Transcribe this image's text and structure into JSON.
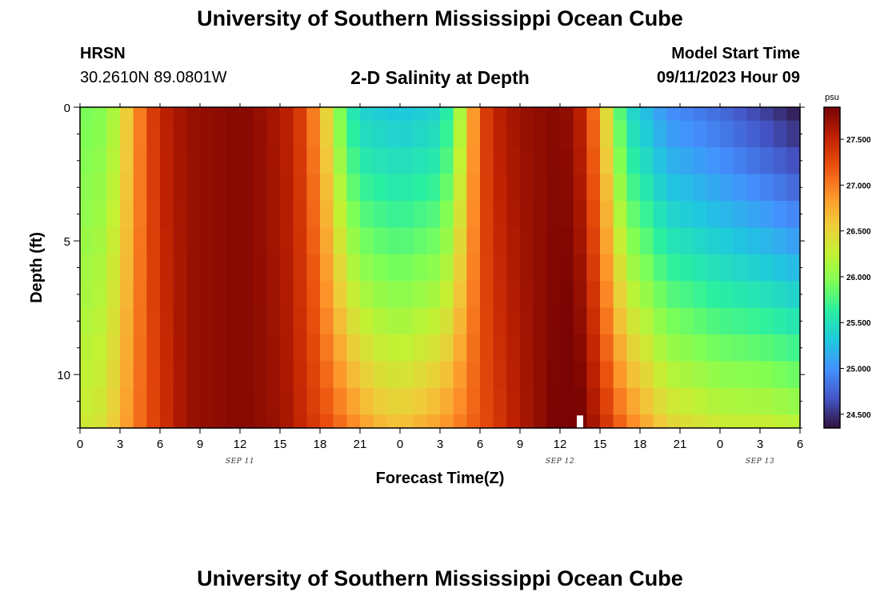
{
  "header": {
    "title_top": "University of Southern Mississippi Ocean Cube",
    "title_bottom": "University of Southern Mississippi Ocean Cube",
    "station": "HRSN",
    "coordinates": "30.2610N  89.0801W",
    "subtitle": "2-D Salinity at Depth",
    "model_start_label": "Model Start Time",
    "model_start_value": "09/11/2023 Hour 09"
  },
  "chart_data": {
    "type": "heatmap",
    "title": "2-D Salinity at Depth",
    "xlabel": "Forecast Time(Z)",
    "ylabel": "Depth (ft)",
    "x_hours_range": [
      0,
      54
    ],
    "x_tick_hours": [
      0,
      3,
      6,
      9,
      12,
      15,
      18,
      21,
      24,
      27,
      30,
      33,
      36,
      39,
      42,
      45,
      48,
      51,
      54
    ],
    "x_tick_labels": [
      "0",
      "3",
      "6",
      "9",
      "12",
      "15",
      "18",
      "21",
      "0",
      "3",
      "6",
      "9",
      "12",
      "15",
      "18",
      "21",
      "0",
      "3",
      "6"
    ],
    "date_labels": [
      {
        "hour": 12,
        "text": "SEP 11"
      },
      {
        "hour": 36,
        "text": "SEP 12"
      },
      {
        "hour": 51,
        "text": "SEP 13"
      }
    ],
    "y_range_ft": [
      0,
      12
    ],
    "y_tick_values": [
      0,
      5,
      10
    ],
    "y_tick_labels": [
      "0",
      "5",
      "10"
    ],
    "depth_layers_ft": [
      0,
      1,
      2,
      3,
      4,
      5,
      6,
      7,
      8,
      9,
      10,
      11,
      12
    ],
    "salinity_surface_psu": [
      [
        0,
        25.9
      ],
      [
        2,
        26.0
      ],
      [
        3,
        26.3
      ],
      [
        4,
        26.8
      ],
      [
        5,
        27.2
      ],
      [
        6,
        27.5
      ],
      [
        8,
        27.7
      ],
      [
        12,
        27.8
      ],
      [
        14,
        27.7
      ],
      [
        16,
        27.5
      ],
      [
        17,
        27.2
      ],
      [
        18,
        26.8
      ],
      [
        19,
        26.2
      ],
      [
        20,
        25.7
      ],
      [
        21,
        25.4
      ],
      [
        24,
        25.3
      ],
      [
        27,
        25.4
      ],
      [
        28,
        25.8
      ],
      [
        29,
        26.5
      ],
      [
        30,
        27.2
      ],
      [
        31,
        27.5
      ],
      [
        33,
        27.7
      ],
      [
        36,
        27.8
      ],
      [
        37,
        27.7
      ],
      [
        38,
        27.4
      ],
      [
        39,
        26.8
      ],
      [
        40,
        26.1
      ],
      [
        41,
        25.5
      ],
      [
        44,
        25.0
      ],
      [
        48,
        24.8
      ],
      [
        51,
        24.6
      ],
      [
        54,
        24.4
      ]
    ],
    "salinity_bottom_psu": [
      [
        0,
        26.3
      ],
      [
        2,
        26.4
      ],
      [
        3,
        26.7
      ],
      [
        5,
        27.2
      ],
      [
        8,
        27.7
      ],
      [
        12,
        27.8
      ],
      [
        15,
        27.7
      ],
      [
        18,
        27.3
      ],
      [
        20,
        27.0
      ],
      [
        22,
        26.7
      ],
      [
        24,
        26.6
      ],
      [
        27,
        26.8
      ],
      [
        30,
        27.2
      ],
      [
        33,
        27.6
      ],
      [
        36,
        27.9
      ],
      [
        37,
        27.95
      ],
      [
        38,
        27.8
      ],
      [
        39,
        27.5
      ],
      [
        41,
        27.0
      ],
      [
        44,
        26.5
      ],
      [
        48,
        26.3
      ],
      [
        51,
        26.3
      ],
      [
        54,
        26.2
      ]
    ],
    "colorbar": {
      "unit": "psu",
      "min": 24.35,
      "max": 27.85,
      "ticks": [
        "27.500",
        "27.000",
        "26.500",
        "26.000",
        "25.500",
        "25.000",
        "24.500"
      ],
      "tick_values": [
        27.5,
        27.0,
        26.5,
        26.0,
        25.5,
        25.0,
        24.5
      ],
      "colors": [
        "#30123b",
        "#4454c4",
        "#4490fe",
        "#1fc8de",
        "#29efa2",
        "#7eff55",
        "#c3f133",
        "#f1ca3a",
        "#fe922a",
        "#ea4f0d",
        "#be2102",
        "#7a0403"
      ]
    },
    "missing_cell": {
      "hour": 37.5,
      "depth_ft": 11.5,
      "color": "#ffffff"
    }
  }
}
